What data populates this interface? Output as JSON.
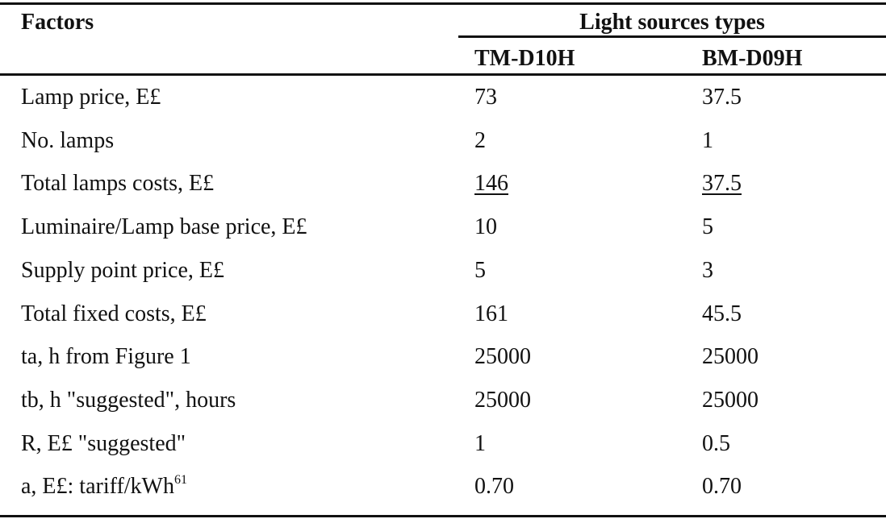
{
  "table": {
    "header": {
      "factors": "Factors",
      "group": "Light sources types",
      "columns": [
        "TM-D10H",
        "BM-D09H"
      ]
    },
    "rows": [
      {
        "cells": [
          "Lamp price, E£",
          "73",
          "37.5"
        ]
      },
      {
        "cells": [
          "No. lamps",
          "2",
          "1"
        ]
      },
      {
        "cells": [
          "Total lamps costs, E£",
          "146",
          "37.5"
        ],
        "underlined": true
      },
      {
        "cells": [
          "Luminaire/Lamp base price, E£",
          "10",
          "5"
        ]
      },
      {
        "cells": [
          "Supply point price, E£",
          "5",
          "3"
        ]
      },
      {
        "cells": [
          "Total fixed costs, E£",
          "161",
          "45.5"
        ]
      },
      {
        "cells": [
          "ta, h from Figure 1",
          "25000",
          "25000"
        ]
      },
      {
        "cells": [
          "tb, h \"suggested\", hours",
          "25000",
          "25000"
        ]
      },
      {
        "cells": [
          "R, E£ \"suggested\"",
          "1",
          "0.5"
        ]
      },
      {
        "cells": [
          "a, E£: tariff/kWh",
          "0.70",
          "0.70"
        ],
        "sup": "61"
      }
    ]
  }
}
